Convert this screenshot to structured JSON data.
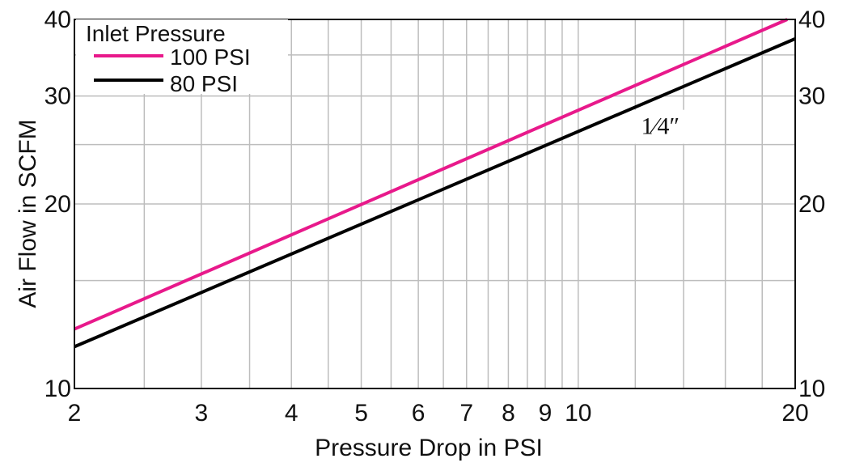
{
  "chart_data": {
    "type": "line",
    "x_scale": "log",
    "y_scale": "log",
    "xlim": [
      2,
      20
    ],
    "ylim": [
      10,
      40
    ],
    "x_ticks": [
      2,
      3,
      4,
      5,
      6,
      7,
      8,
      9,
      10,
      20
    ],
    "x_tick_labels": [
      "2",
      "3",
      "4",
      "5",
      "6",
      "7",
      "8",
      "9",
      "10",
      "20"
    ],
    "x_minor_grid": [
      2.5,
      3.5,
      4.5,
      5.5,
      6.5,
      7.5,
      8.5,
      9.5,
      12,
      14,
      16,
      18
    ],
    "y_ticks": [
      10,
      20,
      30,
      40
    ],
    "y_tick_labels": [
      "10",
      "20",
      "30",
      "40"
    ],
    "y_minor_grid": [
      15,
      25,
      35
    ],
    "grid": true,
    "xlabel": "Pressure Drop in PSI",
    "ylabel": "Air Flow in SCFM",
    "legend": {
      "title": "Inlet Pressure",
      "placement": "top-left"
    },
    "series": [
      {
        "name": "100 PSI",
        "color": "#e8198b",
        "x": [
          2,
          19.5
        ],
        "y": [
          12.5,
          40
        ]
      },
      {
        "name": "80 PSI",
        "color": "#000000",
        "x": [
          2,
          20
        ],
        "y": [
          11.7,
          37.2
        ]
      }
    ],
    "annotations": [
      {
        "text": "1⁄4″",
        "x": 13,
        "y": 26
      }
    ]
  }
}
